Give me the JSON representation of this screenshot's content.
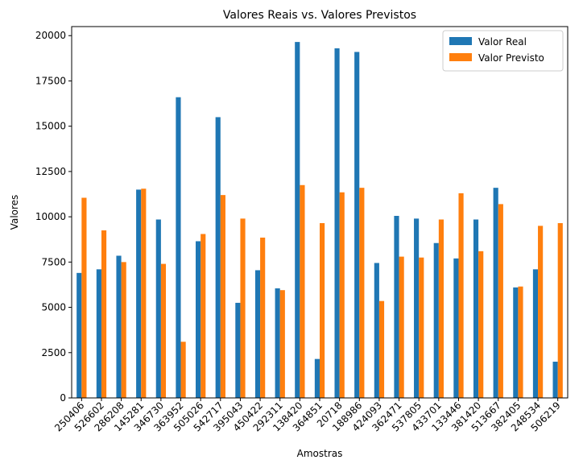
{
  "chart_data": {
    "type": "bar",
    "title": "Valores Reais vs. Valores Previstos",
    "xlabel": "Amostras",
    "ylabel": "Valores",
    "ylim": [
      0,
      20500
    ],
    "yticks": [
      0,
      2500,
      5000,
      7500,
      10000,
      12500,
      15000,
      17500,
      20000
    ],
    "grid": false,
    "legend": "top-right",
    "categories": [
      "250406",
      "526602",
      "286208",
      "145281",
      "346730",
      "363952",
      "505026",
      "542717",
      "395043",
      "450422",
      "292311",
      "138420",
      "364851",
      "20718",
      "188986",
      "424093",
      "362471",
      "537805",
      "433701",
      "133446",
      "381420",
      "513667",
      "382405",
      "248534",
      "506219"
    ],
    "series": [
      {
        "name": "Valor Real",
        "color": "#1f77b4",
        "values": [
          6900,
          7100,
          7850,
          11500,
          9850,
          16600,
          8650,
          15500,
          5250,
          7050,
          6050,
          19650,
          2150,
          19300,
          19100,
          7450,
          10050,
          9900,
          8550,
          7700,
          9850,
          11600,
          6100,
          7100,
          2000
        ]
      },
      {
        "name": "Valor Previsto",
        "color": "#ff7f0e",
        "values": [
          11050,
          9250,
          7500,
          11550,
          7400,
          3100,
          9050,
          11200,
          9900,
          8850,
          5950,
          11750,
          9650,
          11350,
          11600,
          5350,
          7800,
          7750,
          9850,
          11300,
          8100,
          10700,
          6150,
          9500,
          9650
        ]
      }
    ]
  }
}
